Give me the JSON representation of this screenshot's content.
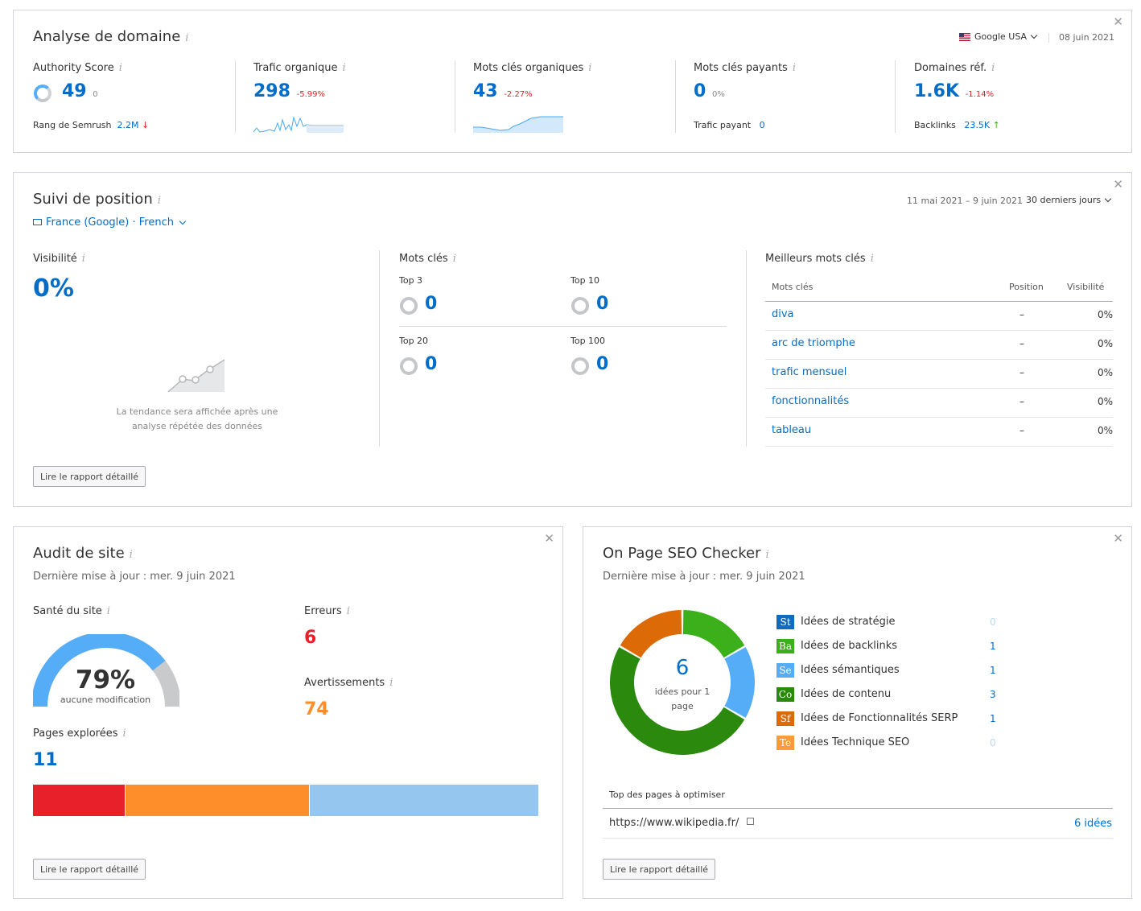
{
  "domain_analysis": {
    "title": "Analyse de domaine",
    "database": "Google USA",
    "date": "08 juin 2021",
    "metrics": [
      {
        "label": "Authority Score",
        "value": "49",
        "change": "0",
        "sub_label": "Rang de Semrush",
        "sub_value": "2.2M",
        "sub_trend": "down"
      },
      {
        "label": "Trafic organique",
        "value": "298",
        "change": "-5.99%"
      },
      {
        "label": "Mots clés organiques",
        "value": "43",
        "change": "-2.27%"
      },
      {
        "label": "Mots clés payants",
        "value": "0",
        "change": "0%",
        "sub_label": "Trafic payant",
        "sub_value": "0"
      },
      {
        "label": "Domaines réf.",
        "value": "1.6K",
        "change": "-1.14%",
        "sub_label": "Backlinks",
        "sub_value": "23.5K",
        "sub_trend": "up"
      }
    ]
  },
  "position_tracking": {
    "title": "Suivi de position",
    "location": "France (Google) · French",
    "date_range": "11 mai 2021 – 9 juin 2021",
    "period": "30 derniers jours",
    "visibility_label": "Visibilité",
    "visibility_value": "0%",
    "trend_note_1": "La tendance sera affichée après une",
    "trend_note_2": "analyse répétée des données",
    "keywords_label": "Mots clés",
    "tops": [
      {
        "label": "Top 3",
        "value": "0"
      },
      {
        "label": "Top 10",
        "value": "0"
      },
      {
        "label": "Top 20",
        "value": "0"
      },
      {
        "label": "Top 100",
        "value": "0"
      }
    ],
    "best_keywords_label": "Meilleurs mots clés",
    "table_headers": {
      "keyword": "Mots clés",
      "position": "Position",
      "visibility": "Visibilité"
    },
    "keywords": [
      {
        "keyword": "diva",
        "position": "–",
        "visibility": "0%"
      },
      {
        "keyword": "arc de triomphe",
        "position": "–",
        "visibility": "0%"
      },
      {
        "keyword": "trafic mensuel",
        "position": "–",
        "visibility": "0%"
      },
      {
        "keyword": "fonctionnalités",
        "position": "–",
        "visibility": "0%"
      },
      {
        "keyword": "tableau",
        "position": "–",
        "visibility": "0%"
      }
    ],
    "report_button": "Lire le rapport détaillé"
  },
  "site_audit": {
    "title": "Audit de site",
    "updated": "Dernière mise à jour : mer. 9 juin 2021",
    "health_label": "Santé du site",
    "health_value": "79%",
    "health_fraction": 0.79,
    "health_sub": "aucune modification",
    "errors_label": "Erreurs",
    "errors_value": "6",
    "warnings_label": "Avertissements",
    "warnings_value": "74",
    "pages_label": "Pages explorées",
    "pages_value": "11",
    "bar_fractions": {
      "errors": 0.182,
      "warnings": 0.364,
      "ok": 0.454
    },
    "colors": {
      "errors": "#e8202a",
      "warnings": "#fd8e29",
      "ok": "#95c6f0",
      "gauge": "#54adf6",
      "gauge_bg": "#c9cacc"
    },
    "report_button": "Lire le rapport détaillé"
  },
  "on_page_seo": {
    "title": "On Page SEO Checker",
    "updated": "Dernière mise à jour : mer. 9 juin 2021",
    "total": "6",
    "total_label_1": "idées pour 1",
    "total_label_2": "page",
    "ideas": [
      {
        "badge": "St",
        "label": "Idées de stratégie",
        "count": 0,
        "color": "#0f6bc0"
      },
      {
        "badge": "Ba",
        "label": "Idées de backlinks",
        "count": 1,
        "color": "#3cb01b"
      },
      {
        "badge": "Se",
        "label": "Idées sémantiques",
        "count": 1,
        "color": "#54adf6"
      },
      {
        "badge": "Co",
        "label": "Idées de contenu",
        "count": 3,
        "color": "#2b8a0d"
      },
      {
        "badge": "Sf",
        "label": "Idées de Fonctionnalités SERP",
        "count": 1,
        "color": "#dc6a07"
      },
      {
        "badge": "Te",
        "label": "Idées Technique SEO",
        "count": 0,
        "color": "#fd9a3a"
      }
    ],
    "top_pages_label": "Top des pages à optimiser",
    "page_url": "https://www.wikipedia.fr/",
    "page_ideas": "6 idées",
    "report_button": "Lire le rapport détaillé"
  }
}
